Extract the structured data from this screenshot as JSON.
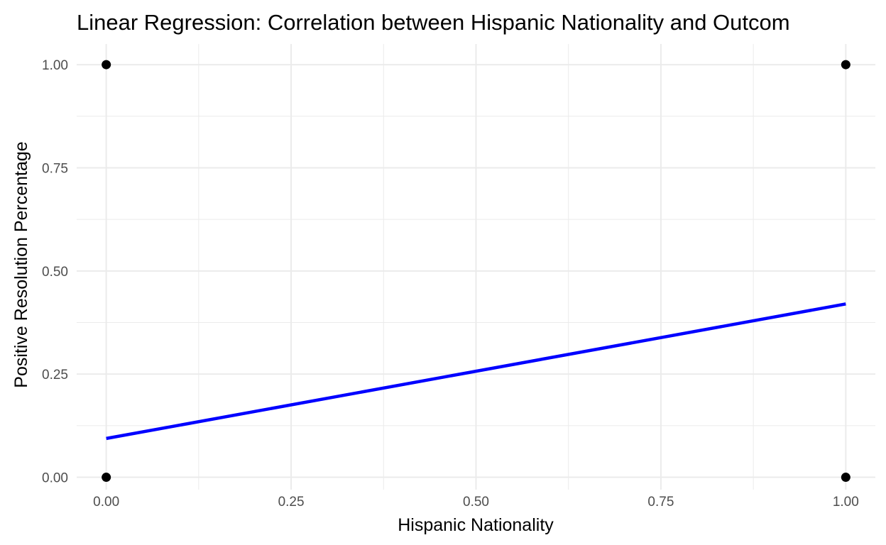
{
  "chart_data": {
    "type": "scatter",
    "title": "Linear Regression: Correlation between Hispanic Nationality and Outcom",
    "xlabel": "Hispanic Nationality",
    "ylabel": "Positive Resolution Percentage",
    "xlim": [
      -0.04,
      1.04
    ],
    "ylim": [
      -0.03,
      1.05
    ],
    "x_ticks": [
      0,
      0.25,
      0.5,
      0.75,
      1
    ],
    "x_tick_labels": [
      "0.00",
      "0.25",
      "0.50",
      "0.75",
      "1.00"
    ],
    "y_ticks": [
      0,
      0.25,
      0.5,
      0.75,
      1
    ],
    "y_tick_labels": [
      "0.00",
      "0.25",
      "0.50",
      "0.75",
      "1.00"
    ],
    "grid": true,
    "points": [
      {
        "x": 0,
        "y": 1
      },
      {
        "x": 0,
        "y": 0
      },
      {
        "x": 1,
        "y": 1
      },
      {
        "x": 1,
        "y": 0
      }
    ],
    "regression_line": {
      "x": [
        0,
        1
      ],
      "y": [
        0.094,
        0.42
      ],
      "color": "#0000ff"
    },
    "point_color": "#000000",
    "grid_color": "#ebebeb"
  }
}
